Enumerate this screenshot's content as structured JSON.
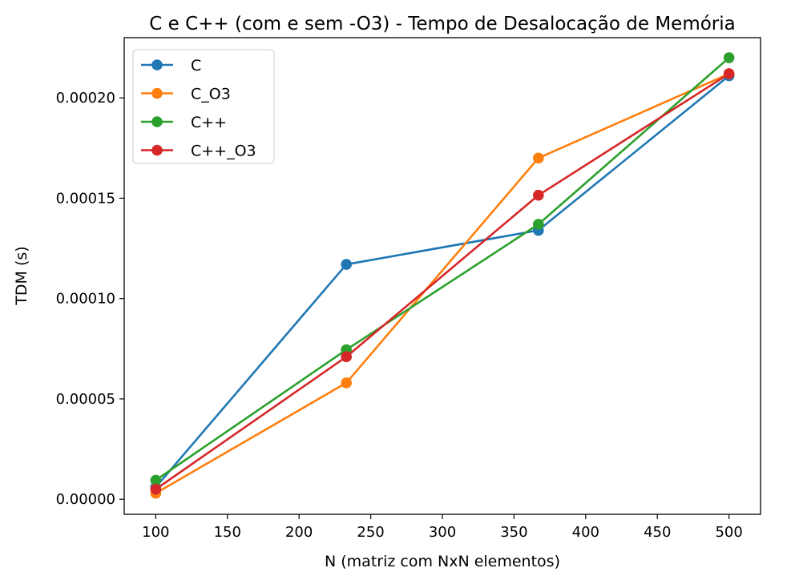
{
  "chart_data": {
    "type": "line",
    "title": "C e C++ (com e sem -O3) - Tempo de Desalocação de Memória",
    "xlabel": "N (matriz com NxN elementos)",
    "ylabel": "TDM (s)",
    "x": [
      100,
      233,
      367,
      500
    ],
    "xlim": [
      78,
      522
    ],
    "ylim": [
      -7.5e-06,
      0.00023
    ],
    "xticks": [
      100,
      150,
      200,
      250,
      300,
      350,
      400,
      450,
      500
    ],
    "yticks": [
      0.0,
      5e-05,
      0.0001,
      0.00015,
      0.0002
    ],
    "ytick_labels": [
      "0.00000",
      "0.00005",
      "0.00010",
      "0.00015",
      "0.00020"
    ],
    "grid": false,
    "legend_position": "top-left",
    "series": [
      {
        "name": "C",
        "color": "#1f77b4",
        "values": [
          6e-06,
          0.000117,
          0.000134,
          0.000211
        ]
      },
      {
        "name": "C_O3",
        "color": "#ff7f0e",
        "values": [
          3e-06,
          5.8e-05,
          0.00017,
          0.000212
        ]
      },
      {
        "name": "C++",
        "color": "#2ca02c",
        "values": [
          9.5e-06,
          7.45e-05,
          0.000137,
          0.00022
        ]
      },
      {
        "name": "C++_O3",
        "color": "#d62728",
        "values": [
          5e-06,
          7.1e-05,
          0.0001515,
          0.000212
        ]
      }
    ]
  }
}
